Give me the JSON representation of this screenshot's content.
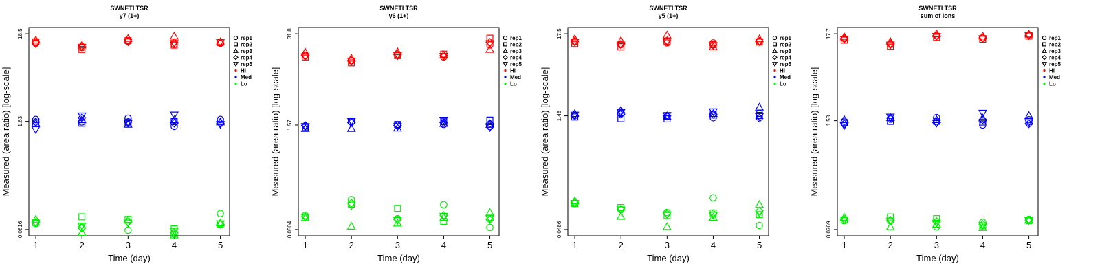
{
  "figure": {
    "xlabel": "Time (day)",
    "ylabel": "Measured (area ratio) [log-scale]",
    "legend": [
      "rep1",
      "rep2",
      "rep3",
      "rep4",
      "rep5",
      "Hi",
      "Med",
      "Lo"
    ],
    "colors": {
      "Hi": "#ff0000",
      "Med": "#0000ff",
      "Lo": "#00ee00"
    }
  },
  "chart_data": [
    {
      "type": "scatter",
      "title": "SWNETLTSR",
      "subtitle": "y7 (1+)",
      "xlabel": "Time (day)",
      "ylabel": "Measured (area ratio) [log-scale]",
      "x": [
        1,
        2,
        3,
        4,
        5
      ],
      "yscale": "log",
      "ylim": [
        0.0816,
        18.5
      ],
      "yticks": [
        "0.0816",
        "1.63",
        "18.5"
      ],
      "legend_position": "right",
      "series": [
        {
          "name": "rep1",
          "level": "Hi",
          "values": [
            14.2,
            12.6,
            15.0,
            13.8,
            14.2
          ]
        },
        {
          "name": "rep2",
          "level": "Hi",
          "values": [
            14.8,
            12.0,
            15.3,
            13.5,
            14.5
          ]
        },
        {
          "name": "rep3",
          "level": "Hi",
          "values": [
            15.5,
            13.5,
            16.2,
            17.3,
            14.8
          ]
        },
        {
          "name": "rep4",
          "level": "Hi",
          "values": [
            14.5,
            13.0,
            15.0,
            14.5,
            14.3
          ]
        },
        {
          "name": "rep5",
          "level": "Hi",
          "values": [
            14.0,
            12.8,
            14.8,
            14.2,
            14.5
          ]
        },
        {
          "name": "rep1",
          "level": "Med",
          "values": [
            1.72,
            1.6,
            1.78,
            1.42,
            1.72
          ]
        },
        {
          "name": "rep2",
          "level": "Med",
          "values": [
            1.65,
            1.55,
            1.6,
            1.62,
            1.65
          ]
        },
        {
          "name": "rep3",
          "level": "Med",
          "values": [
            1.55,
            1.7,
            1.5,
            1.7,
            1.6
          ]
        },
        {
          "name": "rep4",
          "level": "Med",
          "values": [
            1.6,
            1.8,
            1.6,
            1.55,
            1.55
          ]
        },
        {
          "name": "rep5",
          "level": "Med",
          "values": [
            1.3,
            1.9,
            1.55,
            1.95,
            1.5
          ]
        },
        {
          "name": "rep1",
          "level": "Lo",
          "values": [
            0.096,
            0.087,
            0.08,
            0.072,
            0.127
          ]
        },
        {
          "name": "rep2",
          "level": "Lo",
          "values": [
            0.099,
            0.116,
            0.108,
            0.083,
            0.095
          ]
        },
        {
          "name": "rep3",
          "level": "Lo",
          "values": [
            0.108,
            0.075,
            0.106,
            0.07,
            0.098
          ]
        },
        {
          "name": "rep4",
          "level": "Lo",
          "values": [
            0.1,
            0.085,
            0.1,
            0.075,
            0.094
          ]
        },
        {
          "name": "rep5",
          "level": "Lo",
          "values": [
            0.098,
            0.09,
            0.098,
            0.078,
            0.096
          ]
        }
      ]
    },
    {
      "type": "scatter",
      "title": "SWNETLTSR",
      "subtitle": "y6 (1+)",
      "xlabel": "Time (day)",
      "ylabel": "Measured (area ratio) [log-scale]",
      "x": [
        1,
        2,
        3,
        4,
        5
      ],
      "yscale": "log",
      "ylim": [
        0.0504,
        31.8
      ],
      "yticks": [
        "0.0504",
        "1.57",
        "31.8"
      ],
      "legend_position": "right",
      "series": [
        {
          "name": "rep1",
          "level": "Hi",
          "values": [
            15.5,
            13.0,
            15.8,
            14.8,
            22.0
          ]
        },
        {
          "name": "rep2",
          "level": "Hi",
          "values": [
            14.8,
            12.2,
            15.5,
            16.3,
            27.5
          ]
        },
        {
          "name": "rep3",
          "level": "Hi",
          "values": [
            17.3,
            14.2,
            17.5,
            15.8,
            19.0
          ]
        },
        {
          "name": "rep4",
          "level": "Hi",
          "values": [
            15.5,
            13.2,
            16.2,
            15.5,
            24.0
          ]
        },
        {
          "name": "rep5",
          "level": "Hi",
          "values": [
            15.0,
            13.0,
            15.5,
            15.2,
            23.0
          ]
        },
        {
          "name": "rep1",
          "level": "Med",
          "values": [
            1.52,
            1.75,
            1.58,
            1.6,
            1.5
          ]
        },
        {
          "name": "rep2",
          "level": "Med",
          "values": [
            1.45,
            1.8,
            1.6,
            1.75,
            1.85
          ]
        },
        {
          "name": "rep3",
          "level": "Med",
          "values": [
            1.4,
            1.4,
            1.42,
            1.65,
            1.6
          ]
        },
        {
          "name": "rep4",
          "level": "Med",
          "values": [
            1.55,
            1.7,
            1.55,
            1.7,
            1.65
          ]
        },
        {
          "name": "rep5",
          "level": "Med",
          "values": [
            1.5,
            1.78,
            1.5,
            1.85,
            1.45
          ]
        },
        {
          "name": "rep1",
          "level": "Lo",
          "values": [
            0.08,
            0.135,
            0.072,
            0.114,
            0.054
          ]
        },
        {
          "name": "rep2",
          "level": "Lo",
          "values": [
            0.075,
            0.116,
            0.101,
            0.066,
            0.075
          ]
        },
        {
          "name": "rep3",
          "level": "Lo",
          "values": [
            0.074,
            0.056,
            0.062,
            0.075,
            0.088
          ]
        },
        {
          "name": "rep4",
          "level": "Lo",
          "values": [
            0.077,
            0.12,
            0.07,
            0.08,
            0.07
          ]
        },
        {
          "name": "rep5",
          "level": "Lo",
          "values": [
            0.076,
            0.11,
            0.068,
            0.078,
            0.072
          ]
        }
      ]
    },
    {
      "type": "scatter",
      "title": "SWNETLTSR",
      "subtitle": "y5 (1+)",
      "xlabel": "Time (day)",
      "ylabel": "Measured (area ratio) [log-scale]",
      "x": [
        1,
        2,
        3,
        4,
        5
      ],
      "yscale": "log",
      "ylim": [
        0.0486,
        17.5
      ],
      "yticks": [
        "0.0486",
        "1.48",
        "17.5"
      ],
      "legend_position": "right",
      "series": [
        {
          "name": "rep1",
          "level": "Hi",
          "values": [
            13.8,
            12.6,
            13.3,
            13.3,
            13.8
          ]
        },
        {
          "name": "rep2",
          "level": "Hi",
          "values": [
            13.0,
            11.8,
            14.0,
            12.6,
            13.6
          ]
        },
        {
          "name": "rep3",
          "level": "Hi",
          "values": [
            15.0,
            14.2,
            16.8,
            11.8,
            15.0
          ]
        },
        {
          "name": "rep4",
          "level": "Hi",
          "values": [
            14.0,
            12.8,
            14.2,
            12.5,
            14.0
          ]
        },
        {
          "name": "rep5",
          "level": "Hi",
          "values": [
            13.6,
            12.5,
            13.8,
            12.3,
            13.8
          ]
        },
        {
          "name": "rep1",
          "level": "Med",
          "values": [
            1.5,
            1.6,
            1.45,
            1.4,
            1.6
          ]
        },
        {
          "name": "rep2",
          "level": "Med",
          "values": [
            1.43,
            1.36,
            1.35,
            1.52,
            1.5
          ]
        },
        {
          "name": "rep3",
          "level": "Med",
          "values": [
            1.58,
            1.75,
            1.45,
            1.58,
            1.92
          ]
        },
        {
          "name": "rep4",
          "level": "Med",
          "values": [
            1.48,
            1.55,
            1.48,
            1.55,
            1.38
          ]
        },
        {
          "name": "rep5",
          "level": "Med",
          "values": [
            1.52,
            1.65,
            1.5,
            1.68,
            1.45
          ]
        },
        {
          "name": "rep1",
          "level": "Lo",
          "values": [
            0.108,
            0.088,
            0.081,
            0.126,
            0.055
          ]
        },
        {
          "name": "rep2",
          "level": "Lo",
          "values": [
            0.106,
            0.094,
            0.074,
            0.08,
            0.076
          ]
        },
        {
          "name": "rep3",
          "level": "Lo",
          "values": [
            0.115,
            0.072,
            0.053,
            0.07,
            0.103
          ]
        },
        {
          "name": "rep4",
          "level": "Lo",
          "values": [
            0.11,
            0.09,
            0.078,
            0.078,
            0.085
          ]
        },
        {
          "name": "rep5",
          "level": "Lo",
          "values": [
            0.107,
            0.088,
            0.076,
            0.075,
            0.08
          ]
        }
      ]
    },
    {
      "type": "scatter",
      "title": "SWNETLTSR",
      "subtitle": "sum of Ions",
      "xlabel": "Time (day)",
      "ylabel": "Measured (area ratio) [log-scale]",
      "x": [
        1,
        2,
        3,
        4,
        5
      ],
      "yscale": "log",
      "ylim": [
        0.0769,
        17.7
      ],
      "yticks": [
        "0.0769",
        "1.58",
        "17.7"
      ],
      "legend_position": "right",
      "series": [
        {
          "name": "rep1",
          "level": "Hi",
          "values": [
            15.5,
            13.2,
            16.8,
            15.8,
            17.2
          ]
        },
        {
          "name": "rep2",
          "level": "Hi",
          "values": [
            14.8,
            12.5,
            16.0,
            15.2,
            16.6
          ]
        },
        {
          "name": "rep3",
          "level": "Hi",
          "values": [
            16.2,
            14.2,
            17.6,
            16.6,
            17.5
          ]
        },
        {
          "name": "rep4",
          "level": "Hi",
          "values": [
            15.5,
            13.5,
            16.8,
            15.8,
            17.0
          ]
        },
        {
          "name": "rep5",
          "level": "Hi",
          "values": [
            15.2,
            13.0,
            16.5,
            15.5,
            16.8
          ]
        },
        {
          "name": "rep1",
          "level": "Med",
          "values": [
            1.55,
            1.65,
            1.72,
            1.4,
            1.62
          ]
        },
        {
          "name": "rep2",
          "level": "Med",
          "values": [
            1.5,
            1.55,
            1.55,
            1.52,
            1.55
          ]
        },
        {
          "name": "rep3",
          "level": "Med",
          "values": [
            1.62,
            1.72,
            1.62,
            1.7,
            1.82
          ]
        },
        {
          "name": "rep4",
          "level": "Med",
          "values": [
            1.45,
            1.7,
            1.5,
            1.62,
            1.45
          ]
        },
        {
          "name": "rep5",
          "level": "Med",
          "values": [
            1.38,
            1.75,
            1.48,
            1.95,
            1.5
          ]
        },
        {
          "name": "rep1",
          "level": "Lo",
          "values": [
            0.098,
            0.098,
            0.083,
            0.094,
            0.102
          ]
        },
        {
          "name": "rep2",
          "level": "Lo",
          "values": [
            0.1,
            0.109,
            0.104,
            0.085,
            0.098
          ]
        },
        {
          "name": "rep3",
          "level": "Lo",
          "values": [
            0.108,
            0.083,
            0.089,
            0.081,
            0.1
          ]
        },
        {
          "name": "rep4",
          "level": "Lo",
          "values": [
            0.102,
            0.1,
            0.096,
            0.089,
            0.1
          ]
        },
        {
          "name": "rep5",
          "level": "Lo",
          "values": [
            0.101,
            0.098,
            0.092,
            0.086,
            0.099
          ]
        }
      ]
    }
  ]
}
